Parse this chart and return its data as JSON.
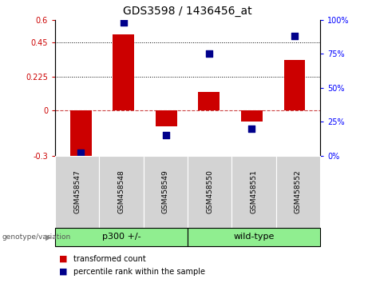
{
  "title": "GDS3598 / 1436456_at",
  "samples": [
    "GSM458547",
    "GSM458548",
    "GSM458549",
    "GSM458550",
    "GSM458551",
    "GSM458552"
  ],
  "red_bars": [
    -0.305,
    0.505,
    -0.105,
    0.12,
    -0.075,
    0.335
  ],
  "blue_dots_pct": [
    2,
    98,
    15,
    75,
    20,
    88
  ],
  "ylim_left": [
    -0.3,
    0.6
  ],
  "ylim_right": [
    0,
    100
  ],
  "yticks_left": [
    -0.3,
    0,
    0.225,
    0.45,
    0.6
  ],
  "yticks_right": [
    0,
    25,
    50,
    75,
    100
  ],
  "ytick_labels_left": [
    "-0.3",
    "0",
    "0.225",
    "0.45",
    "0.6"
  ],
  "ytick_labels_right": [
    "0%",
    "25%",
    "50%",
    "75%",
    "100%"
  ],
  "groups": [
    {
      "label": "p300 +/-",
      "start": 0,
      "end": 3,
      "color": "#90EE90"
    },
    {
      "label": "wild-type",
      "start": 3,
      "end": 6,
      "color": "#90EE90"
    }
  ],
  "bar_color": "#cc0000",
  "dot_color": "#00008B",
  "bar_width": 0.5,
  "dot_size": 40,
  "figsize": [
    4.61,
    3.54
  ],
  "dpi": 100
}
